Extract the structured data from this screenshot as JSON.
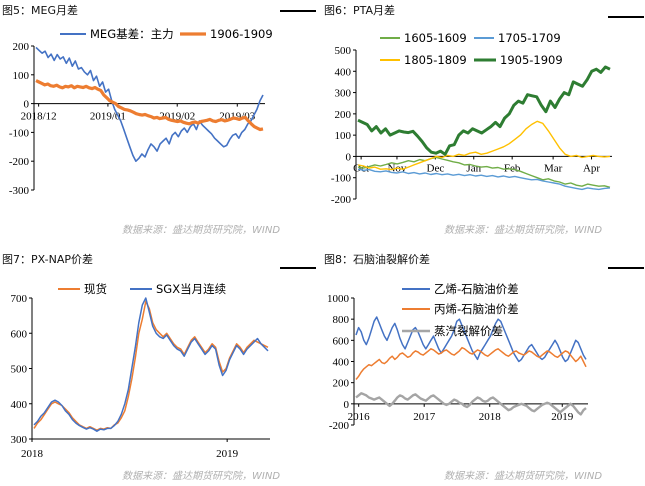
{
  "panels": [
    {
      "title": "图5：MEG月差",
      "source": "数据来源：盛达期货研究院，WIND",
      "chart_data": {
        "type": "line",
        "x_ticks": [
          "2018/12",
          "2019/01",
          "2019/02",
          "2019/03"
        ],
        "y_ticks": [
          "-300",
          "-200",
          "-100",
          "0",
          "100",
          "200"
        ],
        "ylim": [
          -300,
          200
        ],
        "legend_placement": "top",
        "series": [
          {
            "name": "MEG基差：主力",
            "color": "#4472C4",
            "width": 1.6,
            "values": [
              195,
              185,
              175,
              182,
              160,
              172,
              150,
              170,
              155,
              162,
              140,
              158,
              130,
              148,
              120,
              125,
              110,
              100,
              115,
              80,
              95,
              60,
              75,
              40,
              50,
              10,
              -20,
              -40,
              -60,
              -90,
              -120,
              -150,
              -180,
              -200,
              -190,
              -175,
              -185,
              -160,
              -140,
              -150,
              -165,
              -140,
              -130,
              -120,
              -140,
              -110,
              -100,
              -115,
              -95,
              -85,
              -100,
              -80,
              -70,
              -90,
              -60,
              -75,
              -85,
              -95,
              -105,
              -120,
              -130,
              -140,
              -150,
              -145,
              -125,
              -110,
              -105,
              -120,
              -100,
              -90,
              -70,
              -60,
              -40,
              -20,
              10,
              30
            ]
          },
          {
            "name": "1906-1909",
            "color": "#ED7D31",
            "width": 3.2,
            "values": [
              80,
              75,
              70,
              65,
              68,
              62,
              60,
              64,
              58,
              55,
              60,
              58,
              62,
              55,
              60,
              58,
              56,
              60,
              55,
              52,
              56,
              50,
              45,
              30,
              20,
              10,
              5,
              0,
              -10,
              -15,
              -20,
              -22,
              -25,
              -30,
              -35,
              -38,
              -40,
              -38,
              -42,
              -45,
              -50,
              -48,
              -52,
              -50,
              -48,
              -55,
              -58,
              -60,
              -62,
              -60,
              -65,
              -68,
              -70,
              -66,
              -64,
              -68,
              -62,
              -60,
              -58,
              -55,
              -60,
              -62,
              -58,
              -56,
              -60,
              -58,
              -54,
              -50,
              -52,
              -55,
              -50,
              -48,
              -60,
              -70,
              -80,
              -85,
              -90,
              -88
            ]
          }
        ]
      }
    },
    {
      "title": "图6：PTA月差",
      "source": "数据来源：盛达期货研究院，WIND",
      "chart_data": {
        "type": "line",
        "x_ticks": [
          "Oct",
          "Nov",
          "Dec",
          "Jan",
          "Feb",
          "Mar",
          "Apr"
        ],
        "y_ticks": [
          "-200",
          "-100",
          "0",
          "100",
          "200",
          "300",
          "400",
          "500"
        ],
        "ylim": [
          -200,
          500
        ],
        "legend_placement": "top",
        "series": [
          {
            "name": "1605-1609",
            "color": "#70AD47",
            "width": 1.4,
            "values": [
              -50,
              -55,
              -48,
              -40,
              -45,
              -38,
              -30,
              -35,
              -28,
              -20,
              -25,
              -15,
              -20,
              -10,
              -5,
              -12,
              -18,
              -25,
              -30,
              -40,
              -38,
              -45,
              -50,
              -48,
              -55,
              -52,
              -60,
              -58,
              -62,
              -70,
              -80,
              -90,
              -100,
              -110,
              -105,
              -115,
              -120,
              -130,
              -125,
              -135,
              -140,
              -130,
              -135,
              -140,
              -138,
              -145
            ]
          },
          {
            "name": "1705-1709",
            "color": "#5B9BD5",
            "width": 1.4,
            "values": [
              -60,
              -65,
              -62,
              -70,
              -72,
              -68,
              -75,
              -78,
              -72,
              -80,
              -76,
              -82,
              -78,
              -85,
              -80,
              -86,
              -82,
              -88,
              -84,
              -90,
              -86,
              -92,
              -88,
              -94,
              -90,
              -96,
              -92,
              -98,
              -94,
              -100,
              -105,
              -110,
              -108,
              -115,
              -120,
              -125,
              -130,
              -140,
              -145,
              -150,
              -155,
              -148,
              -152,
              -155,
              -150,
              -148
            ]
          },
          {
            "name": "1805-1809",
            "color": "#FFC000",
            "width": 1.4,
            "values": [
              -40,
              -45,
              -55,
              -50,
              -60,
              -58,
              -62,
              -55,
              -60,
              -50,
              -40,
              -30,
              -20,
              -10,
              0,
              -5,
              5,
              0,
              10,
              5,
              15,
              20,
              10,
              15,
              25,
              35,
              45,
              60,
              80,
              100,
              130,
              150,
              165,
              155,
              120,
              80,
              40,
              10,
              0,
              5,
              -5,
              0,
              5,
              0,
              -2,
              0
            ]
          },
          {
            "name": "1905-1909",
            "color": "#2E7D32",
            "width": 3.0,
            "values": [
              170,
              160,
              150,
              120,
              140,
              110,
              130,
              100,
              110,
              120,
              115,
              112,
              118,
              95,
              70,
              40,
              20,
              15,
              25,
              10,
              50,
              55,
              100,
              120,
              110,
              130,
              120,
              110,
              125,
              140,
              160,
              140,
              180,
              200,
              240,
              260,
              250,
              290,
              285,
              280,
              240,
              210,
              260,
              230,
              270,
              300,
              290,
              350,
              340,
              330,
              360,
              400,
              410,
              395,
              420,
              410
            ]
          }
        ]
      }
    },
    {
      "title": "图7：PX-NAP价差",
      "source": "数据来源：盛达期货研究院，WIND",
      "chart_data": {
        "type": "line",
        "x_ticks": [
          "2018",
          "2019"
        ],
        "y_ticks": [
          "300",
          "400",
          "500",
          "600",
          "700"
        ],
        "ylim": [
          300,
          700
        ],
        "legend_placement": "top",
        "series": [
          {
            "name": "现货",
            "color": "#ED7D31",
            "width": 1.5,
            "values": [
              330,
              345,
              355,
              370,
              385,
              400,
              405,
              400,
              395,
              385,
              375,
              360,
              350,
              340,
              335,
              330,
              335,
              330,
              325,
              330,
              328,
              332,
              330,
              340,
              345,
              360,
              380,
              420,
              470,
              530,
              600,
              640,
              690,
              670,
              630,
              610,
              600,
              590,
              600,
              585,
              570,
              560,
              555,
              540,
              560,
              580,
              590,
              575,
              560,
              545,
              555,
              570,
              560,
              520,
              490,
              500,
              530,
              550,
              570,
              560,
              545,
              560,
              570,
              580,
              575,
              570,
              565,
              560
            ]
          },
          {
            "name": "SGX当月连续",
            "color": "#4472C4",
            "width": 1.5,
            "values": [
              340,
              350,
              365,
              375,
              390,
              405,
              410,
              405,
              395,
              380,
              370,
              355,
              345,
              338,
              333,
              328,
              332,
              328,
              322,
              328,
              326,
              330,
              330,
              338,
              350,
              370,
              400,
              440,
              500,
              560,
              630,
              680,
              700,
              660,
              620,
              600,
              590,
              585,
              595,
              580,
              565,
              555,
              550,
              535,
              555,
              575,
              585,
              570,
              555,
              540,
              550,
              565,
              555,
              510,
              480,
              495,
              525,
              545,
              565,
              555,
              540,
              555,
              565,
              575,
              585,
              570,
              560,
              550
            ]
          }
        ]
      }
    },
    {
      "title": "图8：石脑油裂解价差",
      "source": "数据来源：盛达期货研究院，WIND",
      "chart_data": {
        "type": "line",
        "x_ticks": [
          "2016",
          "2017",
          "2018",
          "2019"
        ],
        "y_ticks": [
          "-200",
          "0",
          "200",
          "400",
          "600",
          "800",
          "1000"
        ],
        "ylim": [
          -200,
          1000
        ],
        "legend_placement": "top",
        "series": [
          {
            "name": "乙烯-石脑油价差",
            "color": "#4472C4",
            "width": 1.5,
            "values": [
              650,
              720,
              680,
              600,
              560,
              620,
              700,
              780,
              820,
              760,
              700,
              640,
              600,
              660,
              720,
              760,
              700,
              620,
              560,
              520,
              580,
              640,
              700,
              720,
              680,
              620,
              560,
              520,
              560,
              600,
              640,
              580,
              520,
              480,
              520,
              560,
              600,
              640,
              700,
              780,
              800,
              740,
              680,
              620,
              560,
              500,
              460,
              420,
              480,
              520,
              560,
              600,
              640,
              700,
              760,
              800,
              780,
              720,
              660,
              600,
              540,
              480,
              440,
              400,
              420,
              460,
              500,
              540,
              560,
              520,
              480,
              440,
              420,
              440,
              480,
              520,
              560,
              600,
              560,
              500,
              440,
              400,
              420,
              480,
              540,
              600,
              580,
              520,
              460,
              420
            ]
          },
          {
            "name": "丙烯-石脑油价差",
            "color": "#ED7D31",
            "width": 1.5,
            "values": [
              230,
              260,
              300,
              330,
              350,
              370,
              360,
              380,
              400,
              420,
              390,
              380,
              400,
              430,
              450,
              420,
              440,
              470,
              480,
              460,
              440,
              450,
              480,
              500,
              490,
              470,
              460,
              480,
              500,
              520,
              510,
              490,
              470,
              480,
              500,
              510,
              490,
              470,
              460,
              480,
              500,
              530,
              520,
              500,
              480,
              470,
              490,
              510,
              500,
              480,
              460,
              450,
              470,
              490,
              510,
              520,
              500,
              480,
              460,
              450,
              470,
              490,
              500,
              480,
              470,
              460,
              480,
              500,
              490,
              470,
              450,
              440,
              460,
              480,
              500,
              490,
              470,
              450,
              440,
              460,
              480,
              500,
              490,
              460,
              430,
              400,
              420,
              450,
              400,
              350
            ]
          },
          {
            "name": "蒸汽裂解价差",
            "color": "#A5A5A5",
            "width": 2.4,
            "values": [
              60,
              80,
              100,
              90,
              80,
              60,
              50,
              40,
              50,
              60,
              40,
              20,
              0,
              -20,
              0,
              30,
              60,
              80,
              70,
              50,
              40,
              60,
              80,
              90,
              70,
              50,
              40,
              30,
              50,
              70,
              80,
              60,
              40,
              20,
              0,
              -10,
              0,
              20,
              40,
              30,
              10,
              0,
              -20,
              -30,
              -10,
              20,
              40,
              60,
              50,
              30,
              20,
              30,
              50,
              60,
              40,
              20,
              0,
              -20,
              -40,
              -60,
              -50,
              -30,
              -20,
              -10,
              0,
              -10,
              -20,
              -40,
              -60,
              -70,
              -50,
              -30,
              -10,
              0,
              10,
              0,
              -20,
              -40,
              -60,
              -80,
              -60,
              -40,
              -20,
              0,
              -20,
              -50,
              -80,
              -100,
              -60,
              -40
            ]
          }
        ]
      }
    }
  ]
}
